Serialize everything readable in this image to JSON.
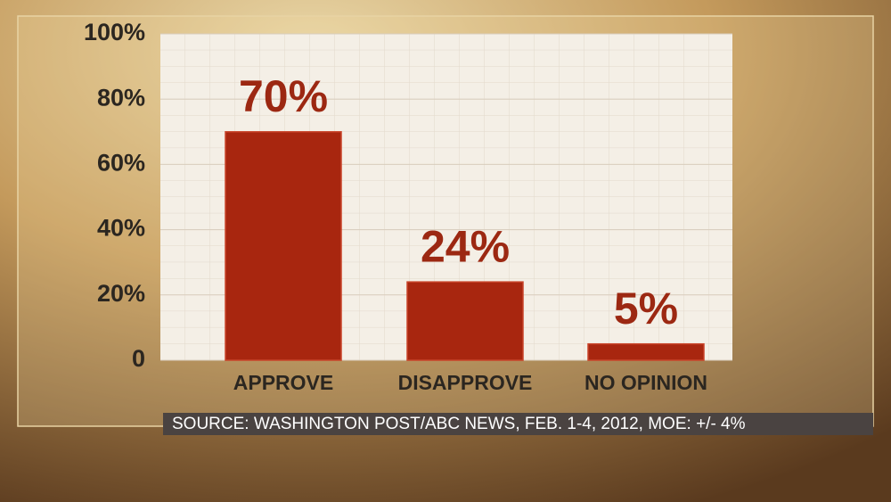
{
  "chart_data": {
    "type": "bar",
    "categories": [
      "APPROVE",
      "DISAPPROVE",
      "NO OPINION"
    ],
    "values": [
      70,
      24,
      5
    ],
    "value_labels": [
      "70%",
      "24%",
      "5%"
    ],
    "color": "#a8260f",
    "ylim": [
      0,
      100
    ],
    "yticks": [
      0,
      {
        "value": 20,
        "label": "20%"
      },
      {
        "value": 40,
        "label": "40%"
      },
      {
        "value": 60,
        "label": "60%"
      },
      {
        "value": 80,
        "label": "80%"
      },
      {
        "value": 100,
        "label": "100%"
      }
    ],
    "grid": true,
    "source": "SOURCE: WASHINGTON POST/ABC NEWS, FEB. 1-4, 2012, MOE: +/- 4%"
  }
}
